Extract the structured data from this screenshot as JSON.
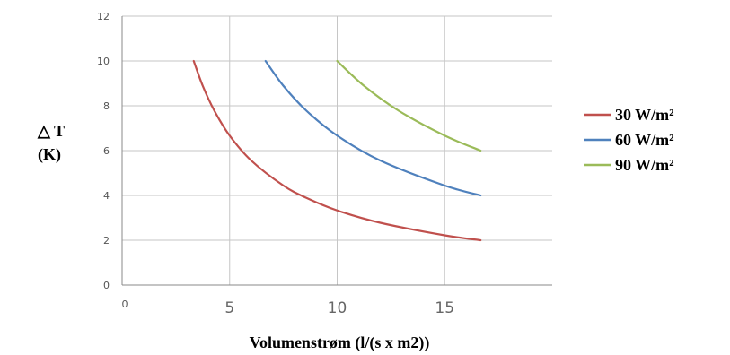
{
  "chart_data": {
    "type": "line",
    "xlabel": "Volumenstrøm (l/(s x m2))",
    "ylabel_symbol": "△ T",
    "ylabel_unit": "(K)",
    "xlim": [
      0,
      20
    ],
    "ylim": [
      0,
      12
    ],
    "x_ticks": [
      0,
      5,
      10,
      15
    ],
    "y_ticks": [
      0,
      2,
      4,
      6,
      8,
      10,
      12
    ],
    "grid": true,
    "legend_position": "right",
    "series": [
      {
        "name": "30 W/m²",
        "color": "#c0504d",
        "x": [
          3.33,
          3.75,
          4.29,
          5,
          6,
          7.5,
          8.57,
          10,
          12,
          15,
          16.67
        ],
        "y": [
          10,
          8.89,
          7.78,
          6.67,
          5.56,
          4.44,
          3.89,
          3.33,
          2.78,
          2.22,
          2
        ]
      },
      {
        "name": "60 W/m²",
        "color": "#4f81bd",
        "x": [
          6.67,
          7.5,
          8.57,
          10,
          12,
          15,
          16.67
        ],
        "y": [
          10,
          8.89,
          7.78,
          6.67,
          5.56,
          4.44,
          4
        ]
      },
      {
        "name": "90 W/m²",
        "color": "#9bbb59",
        "x": [
          10,
          11.25,
          12.86,
          15,
          16.67
        ],
        "y": [
          10,
          8.89,
          7.78,
          6.67,
          6
        ]
      }
    ]
  }
}
